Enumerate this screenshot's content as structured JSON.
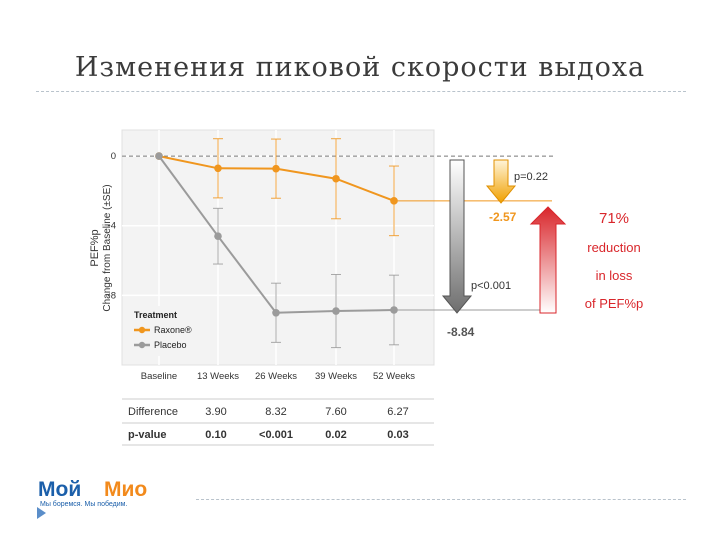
{
  "slide": {
    "title": "Изменения пиковой скорости выдоха"
  },
  "chart_data": {
    "type": "line",
    "categories": [
      "Baseline",
      "13 Weeks",
      "26 Weeks",
      "39 Weeks",
      "52 Weeks"
    ],
    "ylabel_line1": "PEF%p",
    "ylabel_line2": "Change from Baseline (±SE)",
    "yticks": [
      "0",
      "-4",
      "-8"
    ],
    "ylim": [
      -12,
      1.5
    ],
    "legend_title": "Treatment",
    "legend_placement": "bottom-left",
    "series": [
      {
        "name": "Raxone®",
        "color": "#f0961e",
        "values": [
          0,
          -0.7,
          -0.72,
          -1.3,
          -2.57
        ],
        "se": [
          0,
          1.7,
          1.7,
          2.3,
          2.0
        ]
      },
      {
        "name": "Placebo",
        "color": "#9b9b9b",
        "values": [
          0,
          -4.6,
          -9.0,
          -8.9,
          -8.84
        ],
        "se": [
          0,
          1.6,
          1.7,
          2.1,
          2.0
        ]
      }
    ],
    "annotations": {
      "raxone_endpoint": "-2.57",
      "placebo_endpoint": "-8.84",
      "p_raxone": "p=0.22",
      "p_placebo": "p<0.001",
      "reduction_pct": "71%",
      "reduction_line1": "reduction",
      "reduction_line2": "in loss",
      "reduction_line3": "of PEF%p"
    },
    "table": {
      "rows": [
        {
          "label": "Difference",
          "values": [
            "3.90",
            "8.32",
            "7.60",
            "6.27"
          ]
        },
        {
          "label": "p-value",
          "values": [
            "0.10",
            "<0.001",
            "0.02",
            "0.03"
          ]
        }
      ]
    }
  },
  "logo": {
    "word1": "Мой",
    "word2": "Мио",
    "tagline": "Мы боремся. Мы победим."
  },
  "colors": {
    "orange": "#f0961e",
    "grey": "#9b9b9b",
    "red": "#d9262b",
    "logo_blue": "#1b5faa",
    "logo_orange": "#f28a1c"
  }
}
